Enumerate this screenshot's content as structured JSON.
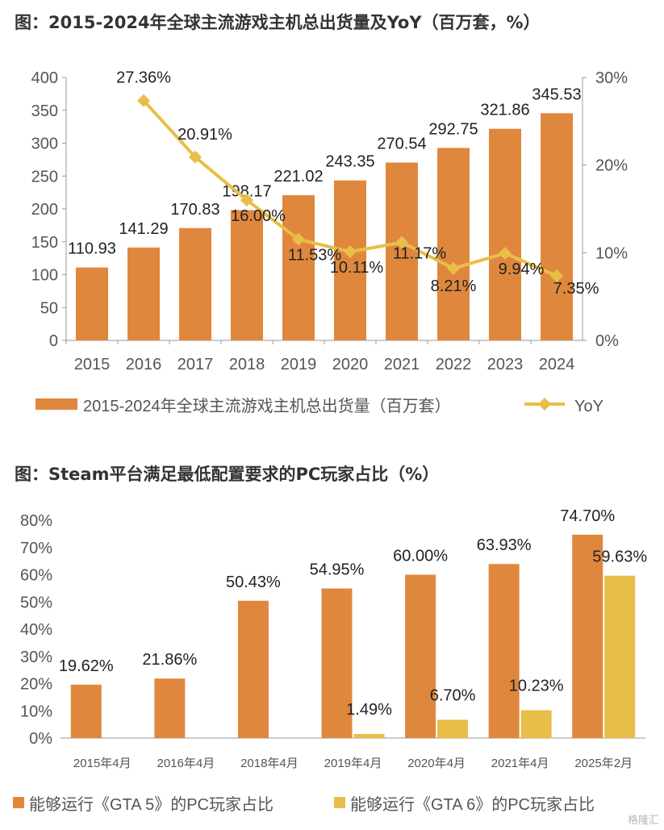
{
  "chart_data": [
    {
      "type": "bar",
      "title": "图：2015-2024年全球主流游戏主机总出货量及YoY（百万套，%）",
      "categories": [
        "2015",
        "2016",
        "2017",
        "2018",
        "2019",
        "2020",
        "2021",
        "2022",
        "2023",
        "2024"
      ],
      "series": [
        {
          "name": "2015-2024年全球主流游戏主机总出货量（百万套）",
          "kind": "bar",
          "axis": "left",
          "color": "#E0873E",
          "values": [
            110.93,
            141.29,
            170.83,
            198.17,
            221.02,
            243.35,
            270.54,
            292.75,
            321.86,
            345.53
          ],
          "labels": [
            "110.93",
            "141.29",
            "170.83",
            "198.17",
            "221.02",
            "243.35",
            "270.54",
            "292.75",
            "321.86",
            "345.53"
          ]
        },
        {
          "name": "YoY",
          "kind": "line",
          "axis": "right",
          "color": "#E8BE48",
          "values": [
            null,
            27.36,
            20.91,
            16.0,
            11.53,
            10.11,
            11.17,
            8.21,
            9.94,
            7.35
          ],
          "labels": [
            "",
            "27.36%",
            "20.91%",
            "16.00%",
            "11.53%",
            "10.11%",
            "11.17%",
            "8.21%",
            "9.94%",
            "7.35%"
          ]
        }
      ],
      "ylim": [
        0,
        400
      ],
      "yticks": [
        "0",
        "50",
        "100",
        "150",
        "200",
        "250",
        "300",
        "350",
        "400"
      ],
      "y2lim": [
        0,
        30
      ],
      "y2ticks": [
        "0%",
        "10%",
        "20%",
        "30%"
      ],
      "legend": "bottom"
    },
    {
      "type": "bar",
      "title": "图：Steam平台满足最低配置要求的PC玩家占比（%）",
      "categories": [
        "2015年4月",
        "2016年4月",
        "2018年4月",
        "2019年4月",
        "2020年4月",
        "2021年4月",
        "2025年2月"
      ],
      "series": [
        {
          "name": "能够运行《GTA 5》的PC玩家占比",
          "color": "#E0873E",
          "values": [
            19.62,
            21.86,
            50.43,
            54.95,
            60.0,
            63.93,
            74.7
          ],
          "labels": [
            "19.62%",
            "21.86%",
            "50.43%",
            "54.95%",
            "60.00%",
            "63.93%",
            "74.70%"
          ]
        },
        {
          "name": "能够运行《GTA 6》的PC玩家占比",
          "color": "#E8BE48",
          "values": [
            null,
            null,
            null,
            1.49,
            6.7,
            10.23,
            59.63
          ],
          "labels": [
            "",
            "",
            "",
            "1.49%",
            "6.70%",
            "10.23%",
            "59.63%"
          ]
        }
      ],
      "ylim": [
        0,
        80
      ],
      "yticks": [
        "0%",
        "10%",
        "20%",
        "30%",
        "40%",
        "50%",
        "60%",
        "70%",
        "80%"
      ],
      "legend": "bottom"
    }
  ],
  "watermark": "格隆汇"
}
